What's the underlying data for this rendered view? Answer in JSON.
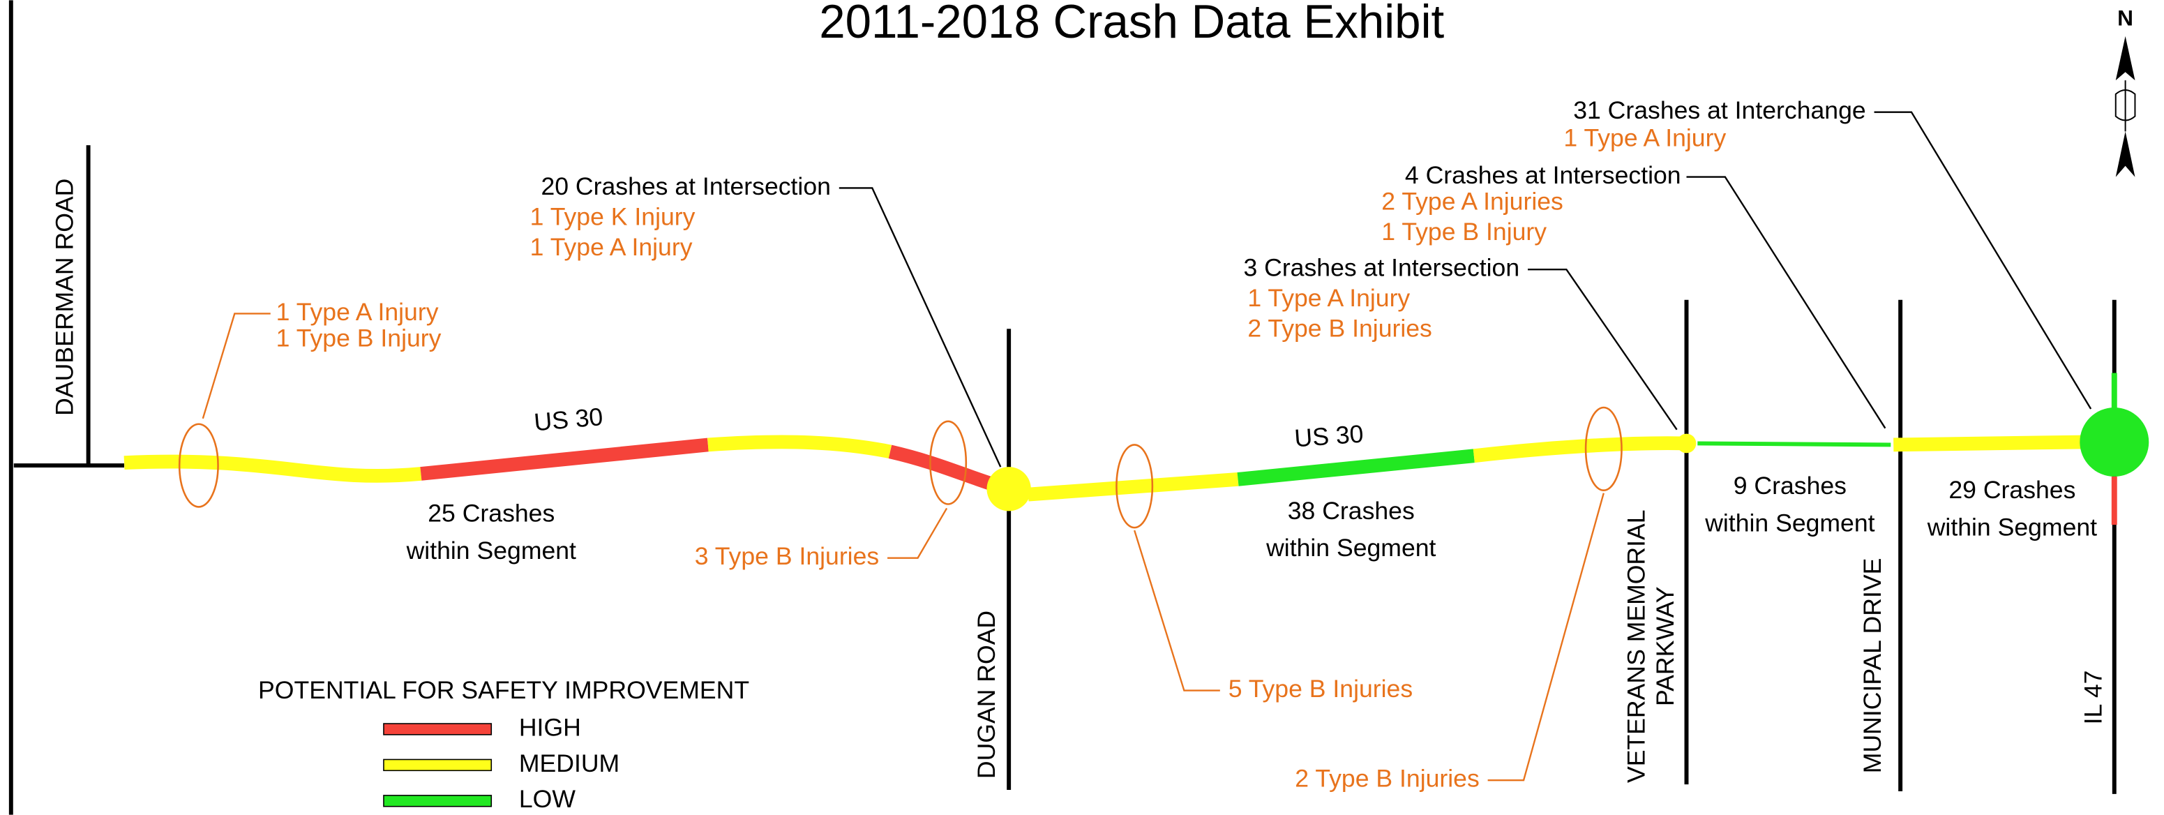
{
  "title": "2011-2018 Crash Data Exhibit",
  "north": "N",
  "roads": {
    "dauberman": "DAUBERMAN ROAD",
    "dugan": "DUGAN ROAD",
    "veterans": [
      "VETERANS MEMORIAL",
      "PARKWAY"
    ],
    "municipal": "MUNICIPAL DRIVE",
    "il47": "IL 47"
  },
  "route_labels": [
    "US 30",
    "US 30"
  ],
  "annotations": [
    {
      "lines": [
        "1 Type A Injury",
        "1 Type B Injury"
      ]
    },
    {
      "lines": [
        "20 Crashes at Intersection",
        "1 Type K Injury",
        "1 Type A Injury"
      ]
    },
    {
      "lines": [
        "25 Crashes",
        "within Segment"
      ]
    },
    {
      "lines": [
        "3 Type B Injuries"
      ]
    },
    {
      "lines": [
        "38 Crashes",
        "within Segment"
      ]
    },
    {
      "lines": [
        "5 Type B Injuries"
      ]
    },
    {
      "lines": [
        "2 Type B Injuries"
      ]
    },
    {
      "lines": [
        "3 Crashes at Intersection",
        "1 Type A Injury",
        "2 Type B Injuries"
      ]
    },
    {
      "lines": [
        "4 Crashes at Intersection",
        "2 Type A Injuries",
        "1 Type B Injury"
      ]
    },
    {
      "lines": [
        "9 Crashes",
        "within Segment"
      ]
    },
    {
      "lines": [
        "31 Crashes at Interchange",
        "1 Type A Injury"
      ]
    },
    {
      "lines": [
        "29 Crashes",
        "within Segment"
      ]
    }
  ],
  "legend": {
    "title": "POTENTIAL FOR SAFETY IMPROVEMENT",
    "items": [
      {
        "label": "HIGH",
        "color": "#f5433a"
      },
      {
        "label": "MEDIUM",
        "color": "#ffff1a"
      },
      {
        "label": "LOW",
        "color": "#22e822"
      }
    ]
  }
}
